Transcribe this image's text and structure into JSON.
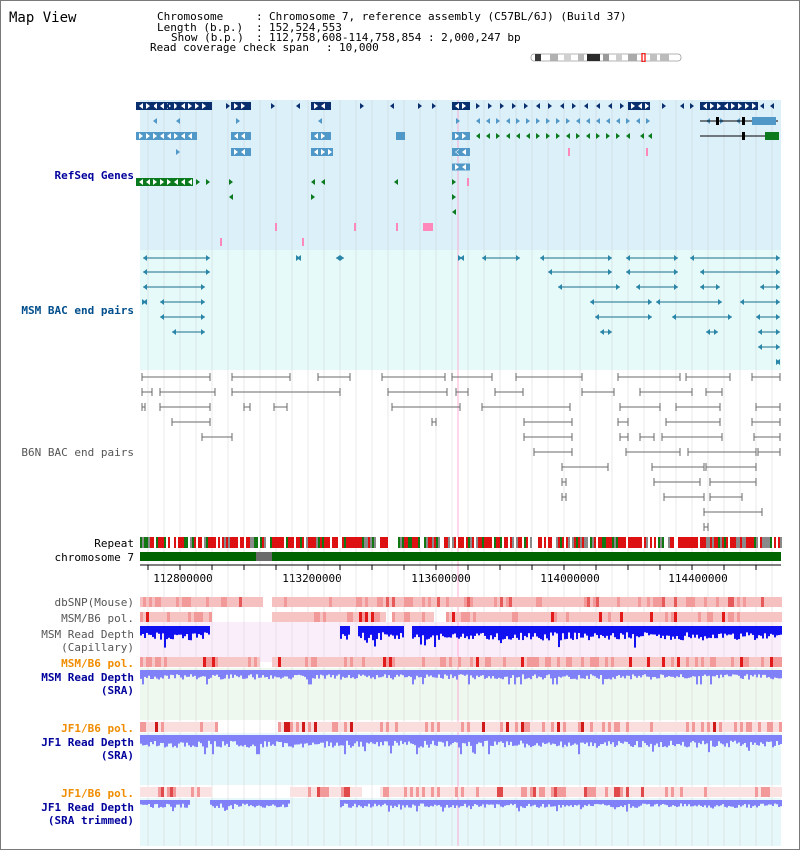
{
  "view": {
    "title": "Map View",
    "chromosome_key": "Chromosome",
    "chromosome_val": "Chromosome 7, reference assembly (C57BL/6J) (Build 37)",
    "length_key": "Length (b.p.)",
    "length_val": "152,524,553",
    "show_key": "Show (b.p.)",
    "show_val": "112,758,608-114,758,854 : 2,000,247 bp",
    "coverage_key": "Read coverage check span",
    "coverage_val": "10,000"
  },
  "tracks": {
    "refseq": "RefSeq Genes",
    "msm_bac": "MSM BAC end pairs",
    "b6n_bac": "B6N BAC end pairs",
    "repeat": "Repeat",
    "chromosome": "chromosome 7",
    "dbsnp": "dbSNP(Mouse)",
    "msm_b6_pol_1": "MSM/B6 pol.",
    "msm_depth_cap_1": "MSM Read Depth",
    "msm_depth_cap_2": "(Capillary)",
    "msm_b6_pol_2": "MSM/B6 pol.",
    "msm_depth_sra_1": "MSM Read Depth",
    "msm_depth_sra_2": "(SRA)",
    "jf1_b6_pol_1": "JF1/B6 pol.",
    "jf1_depth_sra_1": "JF1 Read Depth",
    "jf1_depth_sra_2": "(SRA)",
    "jf1_b6_pol_2": "JF1/B6 pol.",
    "jf1_depth_trim_1": "JF1 Read Depth",
    "jf1_depth_trim_2": "(SRA trimmed)"
  },
  "axis": {
    "ticks": [
      "112800000",
      "113200000",
      "113600000",
      "114000000",
      "114400000"
    ]
  },
  "colors": {
    "refseq_bg": "#dcf0fa",
    "msm_bac_bg": "#e6fafa",
    "gene_dark": "#0a2f6e",
    "gene_mid": "#4f98c8",
    "gene_green": "#0b7a1e",
    "chromosome_bar": "#006400",
    "depth_dark": "#1010f0",
    "depth_light": "#8080f8"
  }
}
